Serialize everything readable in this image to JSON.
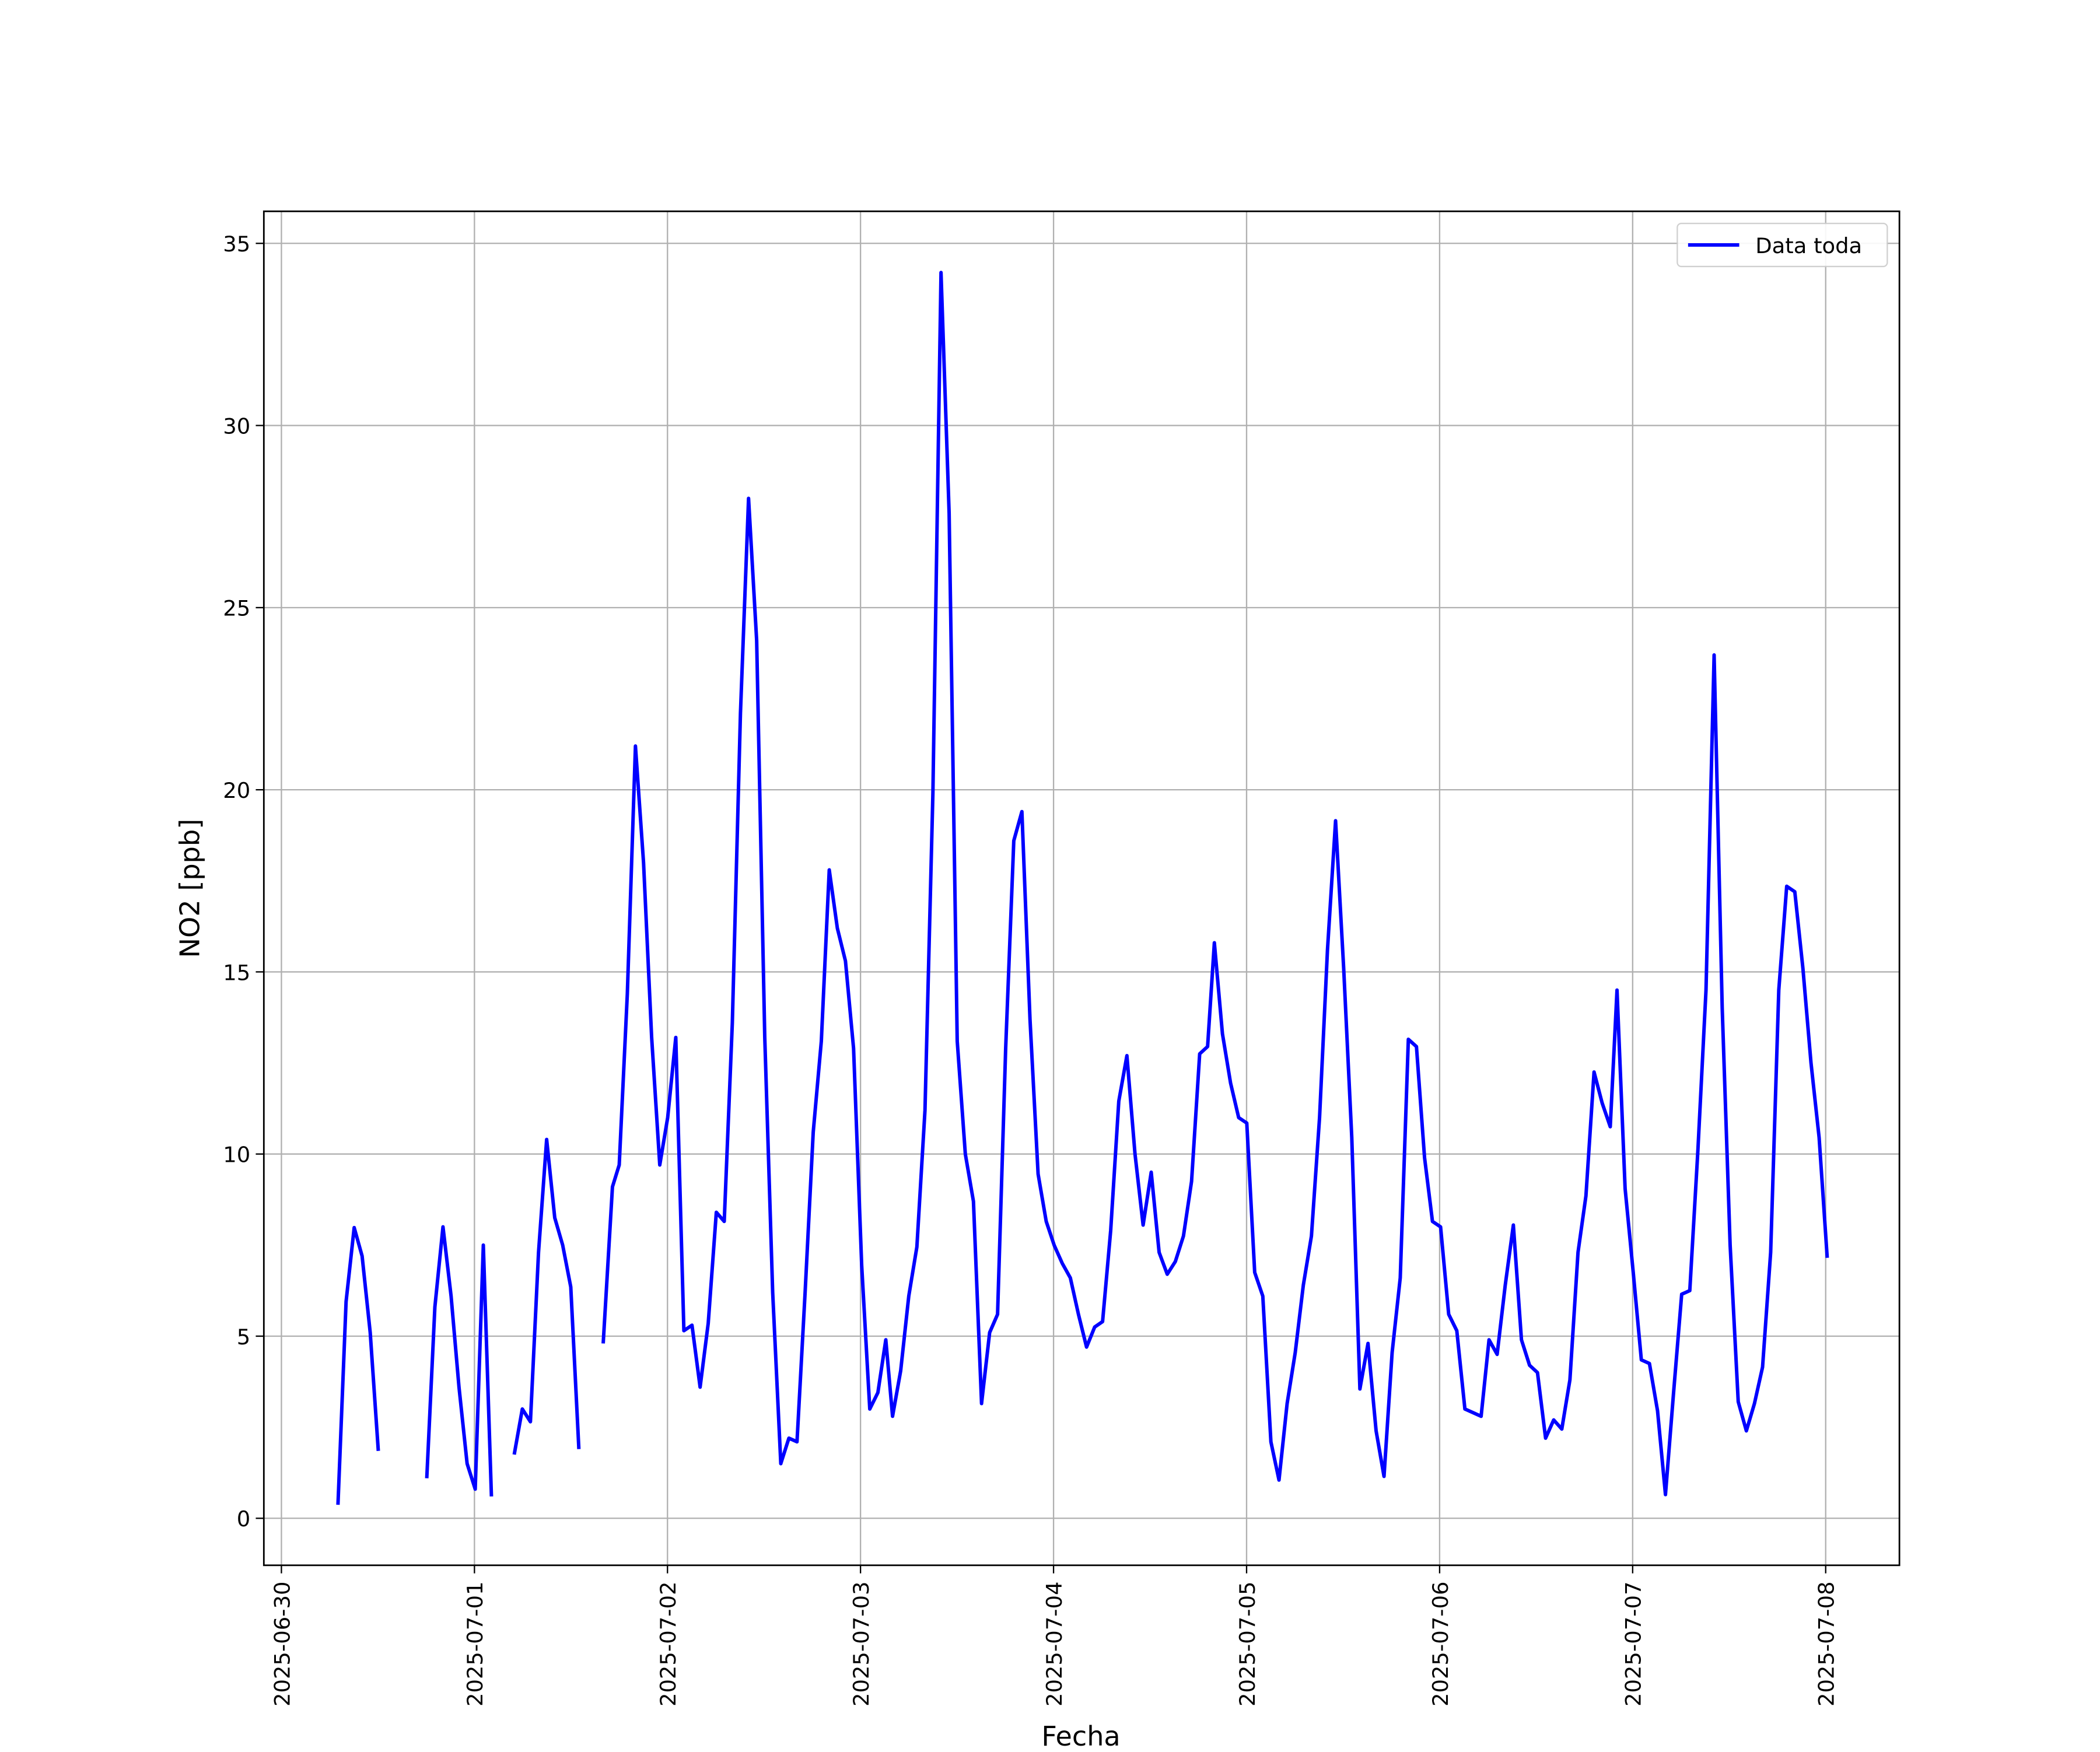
{
  "chart_data": {
    "type": "line",
    "xlabel": "Fecha",
    "ylabel": "NO2 [ppb]",
    "xlim": [
      -0.091,
      8.382
    ],
    "ylim": [
      -1.29,
      35.88
    ],
    "xticks": [
      {
        "value": 0,
        "label": "2025-06-30"
      },
      {
        "value": 1,
        "label": "2025-07-01"
      },
      {
        "value": 2,
        "label": "2025-07-02"
      },
      {
        "value": 3,
        "label": "2025-07-03"
      },
      {
        "value": 4,
        "label": "2025-07-04"
      },
      {
        "value": 5,
        "label": "2025-07-05"
      },
      {
        "value": 6,
        "label": "2025-07-06"
      },
      {
        "value": 7,
        "label": "2025-07-07"
      },
      {
        "value": 8,
        "label": "2025-07-08"
      }
    ],
    "yticks": [
      0,
      5,
      10,
      15,
      20,
      25,
      30,
      35
    ],
    "grid": true,
    "legend": "upper right",
    "x": [
      0.293,
      0.335,
      0.377,
      0.418,
      0.46,
      0.502,
      null,
      0.753,
      0.795,
      0.837,
      0.879,
      0.92,
      0.962,
      1.004,
      1.046,
      1.088,
      null,
      1.206,
      1.248,
      1.29,
      1.332,
      1.374,
      1.416,
      1.457,
      1.499,
      1.541,
      null,
      1.667,
      1.715,
      1.75,
      1.792,
      1.834,
      1.876,
      1.918,
      1.96,
      2.001,
      2.043,
      2.085,
      2.127,
      2.169,
      2.211,
      2.253,
      2.294,
      2.336,
      2.378,
      2.42,
      2.462,
      2.504,
      2.545,
      2.587,
      2.629,
      2.671,
      2.713,
      2.755,
      2.797,
      2.838,
      2.88,
      2.922,
      2.964,
      3.006,
      3.048,
      3.09,
      3.131,
      3.166,
      3.208,
      3.25,
      3.292,
      3.334,
      3.375,
      3.417,
      3.459,
      3.501,
      3.543,
      3.585,
      3.627,
      3.669,
      3.71,
      3.752,
      3.794,
      3.836,
      3.878,
      3.92,
      3.962,
      4.003,
      4.045,
      4.087,
      4.129,
      4.171,
      4.213,
      4.254,
      4.296,
      4.338,
      4.38,
      4.422,
      4.464,
      4.506,
      4.547,
      4.589,
      4.631,
      4.673,
      4.715,
      4.757,
      4.798,
      4.833,
      4.875,
      4.917,
      4.959,
      5.001,
      5.042,
      5.084,
      5.126,
      5.168,
      5.21,
      5.252,
      5.294,
      5.336,
      5.378,
      5.419,
      5.461,
      5.503,
      5.545,
      5.587,
      5.629,
      5.671,
      5.712,
      5.754,
      5.796,
      5.838,
      5.88,
      5.922,
      5.963,
      6.005,
      6.047,
      6.089,
      6.131,
      6.173,
      6.215,
      6.256,
      6.298,
      6.34,
      6.382,
      6.424,
      6.466,
      6.507,
      6.549,
      6.591,
      6.633,
      6.675,
      6.717,
      6.758,
      6.8,
      6.842,
      6.884,
      6.919,
      6.961,
      7.003,
      7.045,
      7.087,
      7.129,
      7.17,
      7.212,
      7.254,
      7.296,
      7.338,
      7.38,
      7.422,
      7.464,
      7.505,
      7.547,
      7.589,
      7.631,
      7.673,
      7.715,
      7.757,
      7.798,
      7.84,
      7.882,
      7.924,
      7.966,
      8.008
    ],
    "series": [
      {
        "name": "Data toda",
        "color": "#0000ff",
        "values": [
          0.37,
          5.95,
          7.98,
          7.2,
          5.1,
          1.85,
          null,
          1.1,
          5.8,
          8.0,
          6.1,
          3.6,
          1.5,
          0.8,
          7.5,
          0.6,
          null,
          1.75,
          3.0,
          2.65,
          7.3,
          10.4,
          8.25,
          7.5,
          6.35,
          1.9,
          null,
          4.8,
          9.1,
          9.7,
          14.4,
          21.2,
          18,
          13.2,
          9.7,
          11,
          13.2,
          5.15,
          5.3,
          3.6,
          5.35,
          8.4,
          8.15,
          13.6,
          22.1,
          28,
          24.1,
          13.2,
          6.2,
          1.5,
          2.2,
          2.1,
          6.2,
          10.6,
          13.1,
          17.8,
          16.2,
          15.3,
          12.9,
          6.95,
          3.0,
          3.45,
          4.9,
          2.8,
          4.05,
          6.1,
          7.45,
          11.2,
          19.9,
          34.2,
          27.6,
          13.1,
          10.0,
          8.7,
          3.15,
          5.1,
          5.6,
          12.9,
          18.6,
          19.4,
          13.7,
          9.45,
          8.15,
          7.5,
          7.0,
          6.6,
          5.6,
          4.7,
          5.25,
          5.4,
          7.9,
          11.45,
          12.7,
          10,
          8.05,
          9.5,
          7.3,
          6.7,
          7.05,
          7.75,
          9.25,
          12.75,
          12.95,
          15.8,
          13.3,
          11.95,
          11,
          10.85,
          6.75,
          6.1,
          2.1,
          1.05,
          3.15,
          4.55,
          6.4,
          7.75,
          11,
          15.6,
          19.15,
          15.1,
          10.45,
          3.55,
          4.8,
          2.4,
          1.15,
          4.55,
          6.6,
          13.15,
          12.95,
          9.9,
          8.15,
          8,
          5.6,
          5.15,
          3.0,
          2.9,
          2.8,
          4.9,
          4.5,
          6.4,
          8.05,
          4.9,
          4.2,
          4.0,
          2.2,
          2.7,
          2.45,
          3.8,
          7.3,
          8.85,
          12.25,
          11.4,
          10.75,
          14.5,
          9.05,
          6.75,
          4.35,
          4.25,
          2.95,
          0.65,
          3.45,
          6.15,
          6.25,
          10.1,
          14.5,
          23.7,
          14,
          7.5,
          3.2,
          2.4,
          3.15,
          4.15,
          7.3,
          14.5,
          17.35,
          17.2,
          15.1,
          12.5,
          10.45,
          7.15
        ]
      }
    ]
  }
}
